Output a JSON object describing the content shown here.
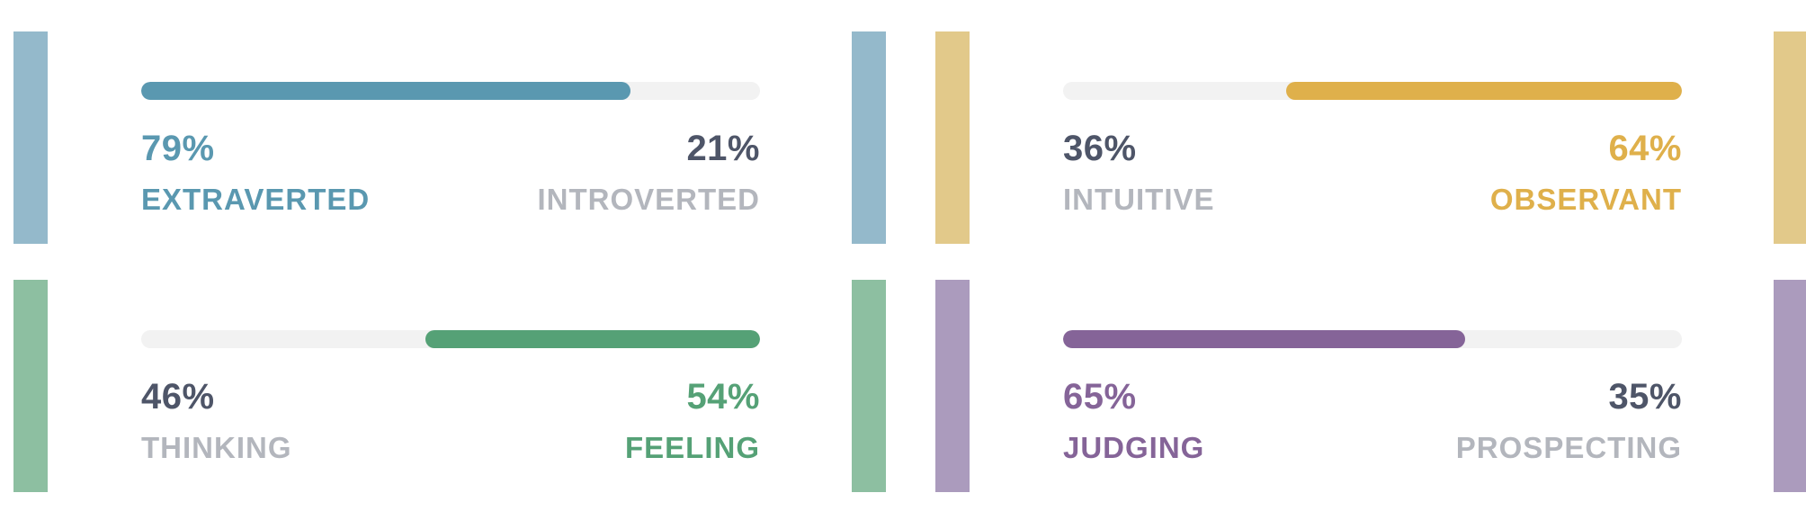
{
  "cards": [
    {
      "stripe_color": "#94b9cb",
      "bar_color": "#5a98b0",
      "fill_from": "left",
      "fill_fraction": 0.79,
      "left_percent": "79%",
      "right_percent": "21%",
      "left_trait": "EXTRAVERTED",
      "right_trait": "INTROVERTED",
      "highlight": "left"
    },
    {
      "stripe_color": "#e2c98a",
      "bar_color": "#dfb04b",
      "fill_from": "right",
      "fill_fraction": 0.64,
      "left_percent": "36%",
      "right_percent": "64%",
      "left_trait": "INTUITIVE",
      "right_trait": "OBSERVANT",
      "highlight": "right"
    },
    {
      "stripe_color": "#8dbfa1",
      "bar_color": "#55a176",
      "fill_from": "right",
      "fill_fraction": 0.54,
      "left_percent": "46%",
      "right_percent": "54%",
      "left_trait": "THINKING",
      "right_trait": "FEELING",
      "highlight": "right"
    },
    {
      "stripe_color": "#ab9bbd",
      "bar_color": "#856498",
      "fill_from": "left",
      "fill_fraction": 0.65,
      "left_percent": "65%",
      "right_percent": "35%",
      "left_trait": "JUDGING",
      "right_trait": "PROSPECTING",
      "highlight": "left"
    }
  ],
  "colors": {
    "track": "#f2f2f2",
    "neutral_percent": "#4e5568",
    "neutral_trait": "#b3b6bd"
  }
}
